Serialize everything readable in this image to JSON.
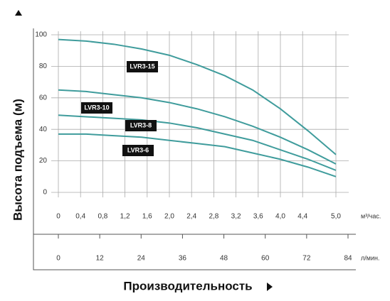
{
  "chart_data": {
    "type": "line",
    "title": "Производительность",
    "ylabel": "Высота подъема (м)",
    "x": [
      0,
      0.5,
      1,
      1.5,
      2,
      2.5,
      3,
      3.5,
      4,
      4.5,
      5.0
    ],
    "xlim": [
      0,
      5.0
    ],
    "xticks": [
      0,
      {
        "value": 0.4,
        "label": "0,4"
      },
      {
        "value": 0.8,
        "label": "0,8"
      },
      {
        "value": 1.2,
        "label": "1,2"
      },
      {
        "value": 1.6,
        "label": "1,6"
      },
      {
        "value": 2.0,
        "label": "2,0"
      },
      {
        "value": 2.4,
        "label": "2,4"
      },
      {
        "value": 2.8,
        "label": "2,8"
      },
      {
        "value": 3.2,
        "label": "3,2"
      },
      {
        "value": 3.6,
        "label": "3,6"
      },
      {
        "value": 4.0,
        "label": "4,0"
      },
      {
        "value": 4.4,
        "label": "4,4"
      },
      {
        "value": 5.0,
        "label": "5,0"
      }
    ],
    "xunit": "м³/час.",
    "x2lim": [
      0,
      84
    ],
    "x2ticks": [
      0,
      12,
      24,
      36,
      48,
      60,
      72,
      84
    ],
    "x2unit": "л/мин.",
    "ylim": [
      0,
      100
    ],
    "yticks": [
      0,
      20,
      40,
      60,
      80,
      100
    ],
    "grid": true,
    "series": [
      {
        "name": "LVR3-15",
        "color": "#3f9c9c",
        "values": [
          97,
          96,
          94,
          91,
          87,
          81,
          74,
          65,
          53,
          39,
          24
        ]
      },
      {
        "name": "LVR3-10",
        "color": "#3f9c9c",
        "values": [
          65,
          64,
          62,
          60,
          57,
          53,
          48,
          42,
          35,
          27,
          18
        ]
      },
      {
        "name": "LVR3-8",
        "color": "#3f9c9c",
        "values": [
          49,
          48,
          47,
          46,
          44,
          41,
          37,
          33,
          27,
          21,
          14
        ]
      },
      {
        "name": "LVR3-6",
        "color": "#3f9c9c",
        "values": [
          37,
          37,
          36,
          35,
          33,
          31,
          29,
          25,
          21,
          16,
          10
        ]
      }
    ]
  }
}
